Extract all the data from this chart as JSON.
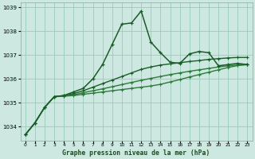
{
  "title": "Graphe pression niveau de la mer (hPa)",
  "bg_color": "#cce8e0",
  "grid_color": "#99ccbb",
  "line_colors": [
    "#1a5c28",
    "#1a5c28",
    "#2d7a3a",
    "#2d7a3a"
  ],
  "xlim": [
    -0.5,
    23.5
  ],
  "ylim": [
    1033.4,
    1039.2
  ],
  "yticks": [
    1034,
    1035,
    1036,
    1037,
    1038,
    1039
  ],
  "xticks": [
    0,
    1,
    2,
    3,
    4,
    5,
    6,
    7,
    8,
    9,
    10,
    11,
    12,
    13,
    14,
    15,
    16,
    17,
    18,
    19,
    20,
    21,
    22,
    23
  ],
  "series": [
    [
      1033.65,
      1034.15,
      1034.8,
      1035.25,
      1035.3,
      1035.45,
      1035.6,
      1036.0,
      1036.6,
      1037.45,
      1038.3,
      1038.35,
      1038.85,
      1037.55,
      1037.1,
      1036.7,
      1036.65,
      1037.05,
      1037.15,
      1037.1,
      1036.55,
      1036.6,
      1036.65,
      1036.6
    ],
    [
      1033.65,
      1034.15,
      1034.8,
      1035.25,
      1035.3,
      1035.38,
      1035.5,
      1035.65,
      1035.8,
      1035.95,
      1036.1,
      1036.25,
      1036.4,
      1036.5,
      1036.58,
      1036.63,
      1036.68,
      1036.73,
      1036.77,
      1036.82,
      1036.85,
      1036.88,
      1036.9,
      1036.9
    ],
    [
      1033.65,
      1034.15,
      1034.8,
      1035.25,
      1035.28,
      1035.33,
      1035.42,
      1035.5,
      1035.58,
      1035.67,
      1035.76,
      1035.85,
      1035.94,
      1036.02,
      1036.1,
      1036.18,
      1036.25,
      1036.32,
      1036.38,
      1036.44,
      1036.5,
      1036.55,
      1036.58,
      1036.6
    ],
    [
      1033.65,
      1034.15,
      1034.8,
      1035.25,
      1035.27,
      1035.3,
      1035.35,
      1035.4,
      1035.45,
      1035.5,
      1035.55,
      1035.6,
      1035.65,
      1035.7,
      1035.77,
      1035.87,
      1035.97,
      1036.08,
      1036.18,
      1036.28,
      1036.38,
      1036.48,
      1036.56,
      1036.6
    ]
  ]
}
